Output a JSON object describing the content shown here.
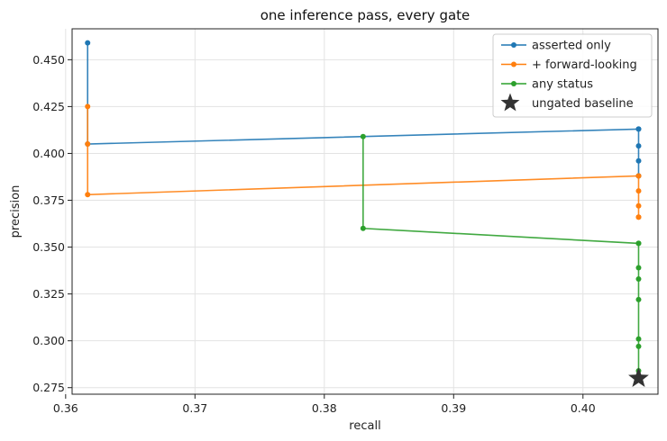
{
  "chart_data": {
    "type": "line",
    "title": "one inference pass, every gate",
    "xlabel": "recall",
    "ylabel": "precision",
    "xlim": [
      0.3605,
      0.4058
    ],
    "ylim": [
      0.2715,
      0.4665
    ],
    "xticks": [
      "0.36",
      "0.37",
      "0.38",
      "0.39",
      "0.40"
    ],
    "yticks": [
      "0.275",
      "0.300",
      "0.325",
      "0.350",
      "0.375",
      "0.400",
      "0.425",
      "0.450"
    ],
    "grid": true,
    "legend_position": "top-right",
    "series": [
      {
        "name": "asserted only",
        "color": "#1f77b4",
        "x": [
          0.3617,
          0.3617,
          0.4043,
          0.4043,
          0.4043,
          0.4043,
          0.4043,
          0.4043,
          0.4043
        ],
        "y": [
          0.459,
          0.405,
          0.413,
          0.413,
          0.404,
          0.396,
          0.388,
          0.388,
          0.388
        ]
      },
      {
        "name": "+ forward-looking",
        "color": "#ff7f0e",
        "x": [
          0.3617,
          0.3617,
          0.3617,
          0.4043,
          0.4043,
          0.4043,
          0.4043,
          0.4043,
          0.4043
        ],
        "y": [
          0.425,
          0.405,
          0.378,
          0.388,
          0.388,
          0.38,
          0.372,
          0.366,
          0.366
        ]
      },
      {
        "name": "any status",
        "color": "#2ca02c",
        "x": [
          0.383,
          0.383,
          0.4043,
          0.4043,
          0.4043,
          0.4043,
          0.4043,
          0.4043,
          0.4043,
          0.4043,
          0.4043
        ],
        "y": [
          0.409,
          0.36,
          0.352,
          0.352,
          0.339,
          0.333,
          0.322,
          0.301,
          0.297,
          0.284,
          0.28
        ]
      }
    ],
    "baseline": {
      "name": "ungated baseline",
      "x": 0.4043,
      "y": 0.28,
      "color": "#333333",
      "marker": "star"
    }
  }
}
